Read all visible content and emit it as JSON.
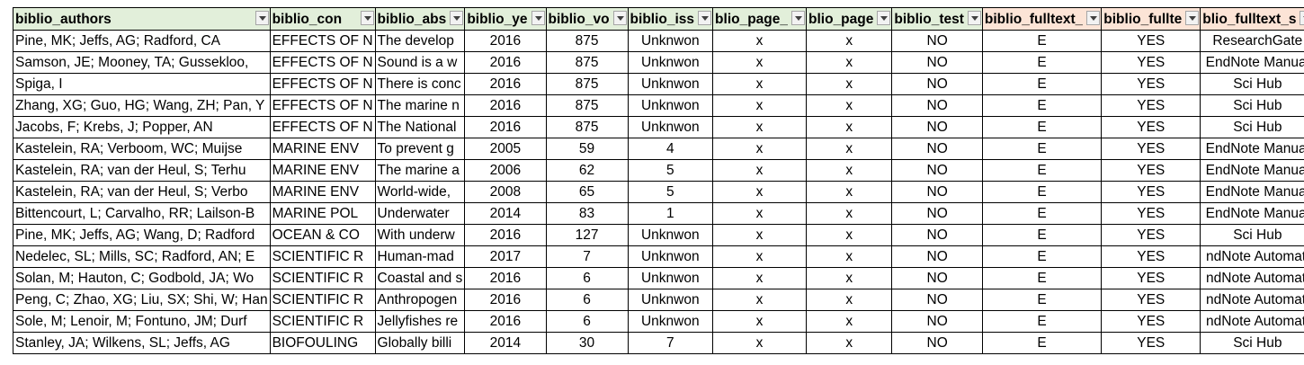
{
  "headers": [
    {
      "label": "biblio_authors",
      "group": "green"
    },
    {
      "label": "biblio_con",
      "group": "green"
    },
    {
      "label": "biblio_abs",
      "group": "green"
    },
    {
      "label": "biblio_ye",
      "group": "green"
    },
    {
      "label": "biblio_vo",
      "group": "green"
    },
    {
      "label": "biblio_iss",
      "group": "green"
    },
    {
      "label": "blio_page_",
      "group": "green"
    },
    {
      "label": "blio_page",
      "group": "green"
    },
    {
      "label": "biblio_test",
      "group": "green"
    },
    {
      "label": "biblio_fulltext_",
      "group": "orange"
    },
    {
      "label": "biblio_fullte",
      "group": "orange"
    },
    {
      "label": "blio_fulltext_s",
      "group": "orange"
    }
  ],
  "rows": [
    [
      "Pine, MK; Jeffs, AG; Radford, CA",
      "EFFECTS OF N",
      "The develop",
      "2016",
      "875",
      "Unknwon",
      "x",
      "x",
      "NO",
      "E",
      "YES",
      "ResearchGate"
    ],
    [
      "Samson, JE; Mooney, TA; Gussekloo, ",
      "EFFECTS OF N",
      "Sound is a w",
      "2016",
      "875",
      "Unknwon",
      "x",
      "x",
      "NO",
      "E",
      "YES",
      "EndNote Manual"
    ],
    [
      "Spiga, I",
      "EFFECTS OF N",
      "There is conc",
      "2016",
      "875",
      "Unknwon",
      "x",
      "x",
      "NO",
      "E",
      "YES",
      "Sci Hub"
    ],
    [
      "Zhang, XG; Guo, HG; Wang, ZH; Pan, Y",
      "EFFECTS OF N",
      "The marine n",
      "2016",
      "875",
      "Unknwon",
      "x",
      "x",
      "NO",
      "E",
      "YES",
      "Sci Hub"
    ],
    [
      "Jacobs, F; Krebs, J; Popper, AN",
      "EFFECTS OF N",
      "The National",
      "2016",
      "875",
      "Unknwon",
      "x",
      "x",
      "NO",
      "E",
      "YES",
      "Sci Hub"
    ],
    [
      "Kastelein, RA; Verboom, WC; Muijse",
      "MARINE ENV",
      "To prevent g",
      "2005",
      "59",
      "4",
      "x",
      "x",
      "NO",
      "E",
      "YES",
      "EndNote Manual"
    ],
    [
      "Kastelein, RA; van der Heul, S; Terhu",
      "MARINE ENV",
      "The marine a",
      "2006",
      "62",
      "5",
      "x",
      "x",
      "NO",
      "E",
      "YES",
      "EndNote Manual"
    ],
    [
      "Kastelein, RA; van der Heul, S; Verbo",
      "MARINE ENV",
      "World-wide,",
      "2008",
      "65",
      "5",
      "x",
      "x",
      "NO",
      "E",
      "YES",
      "EndNote Manual"
    ],
    [
      "Bittencourt, L; Carvalho, RR; Lailson-B",
      "MARINE POL",
      "Underwater",
      "2014",
      "83",
      "1",
      "x",
      "x",
      "NO",
      "E",
      "YES",
      "EndNote Manual"
    ],
    [
      "Pine, MK; Jeffs, AG; Wang, D; Radford",
      "OCEAN & CO",
      "With underw",
      "2016",
      "127",
      "Unknwon",
      "x",
      "x",
      "NO",
      "E",
      "YES",
      "Sci Hub"
    ],
    [
      "Nedelec, SL; Mills, SC; Radford, AN; E",
      "SCIENTIFIC R",
      "Human-mad",
      "2017",
      "7",
      "Unknwon",
      "x",
      "x",
      "NO",
      "E",
      "YES",
      "ndNote Automati"
    ],
    [
      "Solan, M; Hauton, C; Godbold, JA; Wo",
      "SCIENTIFIC R",
      "Coastal and s",
      "2016",
      "6",
      "Unknwon",
      "x",
      "x",
      "NO",
      "E",
      "YES",
      "ndNote Automati"
    ],
    [
      "Peng, C; Zhao, XG; Liu, SX; Shi, W; Han",
      "SCIENTIFIC R",
      "Anthropogen",
      "2016",
      "6",
      "Unknwon",
      "x",
      "x",
      "NO",
      "E",
      "YES",
      "ndNote Automati"
    ],
    [
      "Sole, M; Lenoir, M; Fontuno, JM; Durf",
      "SCIENTIFIC R",
      "Jellyfishes re",
      "2016",
      "6",
      "Unknwon",
      "x",
      "x",
      "NO",
      "E",
      "YES",
      "ndNote Automati"
    ],
    [
      "Stanley, JA; Wilkens, SL; Jeffs, AG",
      "BIOFOULING",
      "Globally billi",
      "2014",
      "30",
      "7",
      "x",
      "x",
      "NO",
      "E",
      "YES",
      "Sci Hub"
    ]
  ]
}
